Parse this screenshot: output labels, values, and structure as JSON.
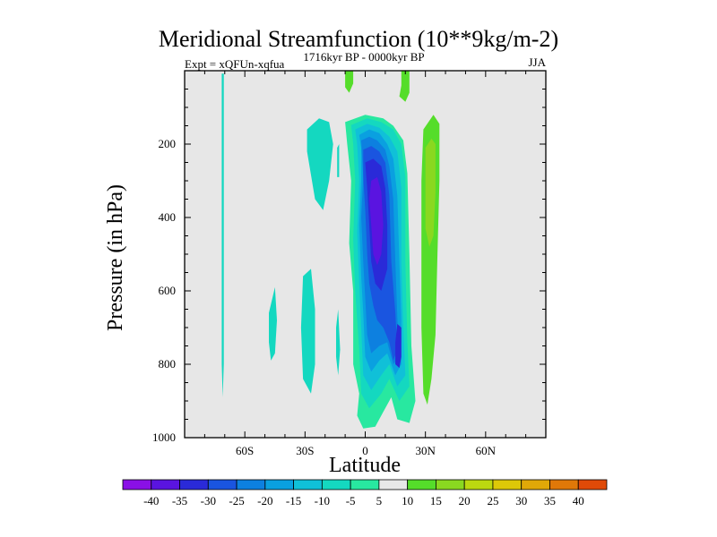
{
  "chart_data": {
    "type": "contour",
    "title": "Meridional Streamfunction (10**9kg/m-2)",
    "left_label": "Expt = xQFUn-xqfua",
    "center_label": "1716kyr BP - 0000kyr BP",
    "right_label": "JJA",
    "xlabel": "Latitude",
    "ylabel": "Pressure (in hPa)",
    "xlim": [
      -90,
      90
    ],
    "ylim": [
      1000,
      0
    ],
    "x_ticks": [
      {
        "value": -60,
        "label": "60S"
      },
      {
        "value": -30,
        "label": "30S"
      },
      {
        "value": 0,
        "label": "0"
      },
      {
        "value": 30,
        "label": "30N"
      },
      {
        "value": 60,
        "label": "60N"
      }
    ],
    "y_ticks": [
      {
        "value": 200,
        "label": "200"
      },
      {
        "value": 400,
        "label": "400"
      },
      {
        "value": 600,
        "label": "600"
      },
      {
        "value": 800,
        "label": "800"
      },
      {
        "value": 1000,
        "label": "1000"
      }
    ],
    "colorbar": {
      "levels": [
        "-40",
        "-35",
        "-30",
        "-25",
        "-20",
        "-15",
        "-10",
        "-5",
        "5",
        "10",
        "15",
        "20",
        "25",
        "30",
        "35",
        "40"
      ],
      "colors": [
        "#8a10e6",
        "#5a14e0",
        "#2a2ad8",
        "#1a55e0",
        "#0d80e0",
        "#0aa0e0",
        "#10c0d8",
        "#14d8c0",
        "#28e8a0",
        "#e8e8e8",
        "#55dd2a",
        "#8ad820",
        "#bcd810",
        "#ddc808",
        "#e0a808",
        "#e07808",
        "#e04a08"
      ]
    },
    "contours": [
      {
        "name": "band-68S",
        "level": -10,
        "points": [
          [
            -71.5,
            8
          ],
          [
            -70.5,
            8
          ],
          [
            -70.5,
            800
          ],
          [
            -71,
            890
          ],
          [
            -71.5,
            800
          ]
        ]
      },
      {
        "name": "blob-35S-upper",
        "level": -10,
        "points": [
          [
            -29,
            160
          ],
          [
            -23,
            130
          ],
          [
            -18,
            140
          ],
          [
            -16,
            200
          ],
          [
            -18,
            300
          ],
          [
            -21,
            380
          ],
          [
            -25,
            350
          ],
          [
            -29,
            220
          ]
        ]
      },
      {
        "name": "blob-34S-lower",
        "level": -10,
        "points": [
          [
            -31,
            560
          ],
          [
            -27,
            540
          ],
          [
            -25,
            650
          ],
          [
            -25,
            800
          ],
          [
            -27,
            880
          ],
          [
            -31,
            840
          ],
          [
            -32,
            700
          ]
        ]
      },
      {
        "name": "blob-47S",
        "level": -10,
        "points": [
          [
            -48,
            660
          ],
          [
            -45,
            590
          ],
          [
            -44,
            680
          ],
          [
            -45,
            770
          ],
          [
            -47,
            790
          ],
          [
            -48,
            740
          ]
        ]
      },
      {
        "name": "sliver-14S-upper",
        "level": -10,
        "points": [
          [
            -14,
            210
          ],
          [
            -13,
            200
          ],
          [
            -13,
            290
          ],
          [
            -14,
            290
          ]
        ]
      },
      {
        "name": "sliver-14S-lower",
        "level": -10,
        "points": [
          [
            -14.5,
            700
          ],
          [
            -13.5,
            650
          ],
          [
            -12.5,
            760
          ],
          [
            -13.5,
            830
          ],
          [
            -14.5,
            780
          ]
        ]
      },
      {
        "name": "main-outer",
        "level": -5,
        "points": [
          [
            -10,
            140
          ],
          [
            0,
            120
          ],
          [
            9,
            130
          ],
          [
            14,
            150
          ],
          [
            19,
            190
          ],
          [
            21,
            280
          ],
          [
            22,
            500
          ],
          [
            23,
            750
          ],
          [
            25,
            900
          ],
          [
            22,
            960
          ],
          [
            16,
            950
          ],
          [
            13,
            890
          ],
          [
            9,
            930
          ],
          [
            5,
            970
          ],
          [
            -1,
            975
          ],
          [
            -4,
            940
          ],
          [
            -3,
            880
          ],
          [
            -6,
            800
          ],
          [
            -6,
            600
          ],
          [
            -8,
            470
          ],
          [
            -7,
            300
          ],
          [
            -9,
            200
          ]
        ]
      },
      {
        "name": "main-lvl-10",
        "level": -10,
        "points": [
          [
            -7,
            148
          ],
          [
            1,
            130
          ],
          [
            8,
            140
          ],
          [
            14,
            160
          ],
          [
            18,
            200
          ],
          [
            20,
            290
          ],
          [
            20,
            520
          ],
          [
            21,
            740
          ],
          [
            22,
            860
          ],
          [
            17,
            900
          ],
          [
            12,
            840
          ],
          [
            8,
            880
          ],
          [
            2,
            920
          ],
          [
            -2,
            880
          ],
          [
            -3,
            760
          ],
          [
            -5,
            600
          ],
          [
            -6,
            460
          ],
          [
            -5,
            300
          ],
          [
            -6,
            200
          ]
        ]
      },
      {
        "name": "main-lvl-15",
        "level": -15,
        "points": [
          [
            -5,
            160
          ],
          [
            1,
            145
          ],
          [
            7,
            155
          ],
          [
            12,
            180
          ],
          [
            16,
            220
          ],
          [
            18,
            320
          ],
          [
            18,
            520
          ],
          [
            19,
            700
          ],
          [
            20,
            830
          ],
          [
            16,
            860
          ],
          [
            12,
            800
          ],
          [
            8,
            830
          ],
          [
            3,
            870
          ],
          [
            -1,
            830
          ],
          [
            -2,
            700
          ],
          [
            -3,
            580
          ],
          [
            -4,
            440
          ],
          [
            -3,
            300
          ],
          [
            -4,
            200
          ]
        ]
      },
      {
        "name": "main-lvl-20",
        "level": -20,
        "points": [
          [
            -3,
            175
          ],
          [
            2,
            160
          ],
          [
            7,
            170
          ],
          [
            11,
            200
          ],
          [
            14,
            240
          ],
          [
            16,
            340
          ],
          [
            17,
            520
          ],
          [
            18,
            680
          ],
          [
            18,
            800
          ],
          [
            15,
            830
          ],
          [
            11,
            770
          ],
          [
            7,
            790
          ],
          [
            3,
            820
          ],
          [
            0,
            780
          ],
          [
            -1,
            660
          ],
          [
            -2,
            560
          ],
          [
            -3,
            420
          ],
          [
            -2,
            300
          ],
          [
            -2,
            210
          ]
        ]
      },
      {
        "name": "main-lvl-25",
        "level": -25,
        "points": [
          [
            -2,
            190
          ],
          [
            2,
            180
          ],
          [
            6,
            190
          ],
          [
            10,
            215
          ],
          [
            12,
            260
          ],
          [
            14,
            350
          ],
          [
            15,
            520
          ],
          [
            16,
            670
          ],
          [
            17,
            780
          ],
          [
            14,
            800
          ],
          [
            11,
            740
          ],
          [
            7,
            750
          ],
          [
            3,
            770
          ],
          [
            1,
            720
          ],
          [
            0,
            620
          ],
          [
            -1,
            520
          ],
          [
            -2,
            400
          ],
          [
            -1,
            290
          ]
        ]
      },
      {
        "name": "main-lvl-30",
        "level": -30,
        "points": [
          [
            -1,
            215
          ],
          [
            3,
            205
          ],
          [
            7,
            220
          ],
          [
            10,
            250
          ],
          [
            12,
            340
          ],
          [
            13,
            520
          ],
          [
            15,
            660
          ],
          [
            16,
            760
          ],
          [
            14,
            790
          ],
          [
            12,
            740
          ],
          [
            9,
            700
          ],
          [
            6,
            680
          ],
          [
            4,
            640
          ],
          [
            2,
            580
          ],
          [
            1,
            500
          ],
          [
            0,
            380
          ],
          [
            -1,
            290
          ]
        ]
      },
      {
        "name": "main-lvl-35",
        "level": -35,
        "points": [
          [
            0,
            250
          ],
          [
            4,
            240
          ],
          [
            8,
            260
          ],
          [
            10,
            320
          ],
          [
            11,
            420
          ],
          [
            11,
            540
          ],
          [
            8,
            600
          ],
          [
            5,
            580
          ],
          [
            3,
            520
          ],
          [
            2,
            420
          ],
          [
            1,
            320
          ]
        ]
      },
      {
        "name": "inner-lvl-40",
        "level": -40,
        "points": [
          [
            3,
            300
          ],
          [
            6,
            290
          ],
          [
            8,
            330
          ],
          [
            9,
            420
          ],
          [
            8,
            500
          ],
          [
            6,
            530
          ],
          [
            4,
            500
          ],
          [
            3,
            420
          ],
          [
            2,
            350
          ]
        ]
      },
      {
        "name": "lower-core-35",
        "level": -35,
        "points": [
          [
            16,
            690
          ],
          [
            18,
            700
          ],
          [
            18,
            780
          ],
          [
            17,
            810
          ],
          [
            15,
            800
          ],
          [
            15,
            740
          ]
        ]
      },
      {
        "name": "top-pos-7S",
        "level": 10,
        "points": [
          [
            -10,
            0
          ],
          [
            -6,
            0
          ],
          [
            -6,
            35
          ],
          [
            -8,
            60
          ],
          [
            -10,
            45
          ]
        ]
      },
      {
        "name": "top-pos-16N",
        "level": 10,
        "points": [
          [
            18,
            0
          ],
          [
            22,
            0
          ],
          [
            22,
            60
          ],
          [
            20,
            85
          ],
          [
            17,
            70
          ],
          [
            18,
            40
          ]
        ]
      },
      {
        "name": "pos-30N-15",
        "level": 10,
        "points": [
          [
            29,
            160
          ],
          [
            34,
            120
          ],
          [
            37,
            145
          ],
          [
            37,
            300
          ],
          [
            36,
            500
          ],
          [
            35,
            720
          ],
          [
            33,
            840
          ],
          [
            31,
            910
          ],
          [
            29,
            880
          ],
          [
            28,
            700
          ],
          [
            28,
            500
          ],
          [
            28,
            300
          ]
        ]
      },
      {
        "name": "pos-30N-20",
        "level": 15,
        "points": [
          [
            30,
            210
          ],
          [
            33,
            185
          ],
          [
            35,
            200
          ],
          [
            35,
            330
          ],
          [
            34,
            450
          ],
          [
            32,
            480
          ],
          [
            30,
            430
          ]
        ]
      }
    ]
  }
}
